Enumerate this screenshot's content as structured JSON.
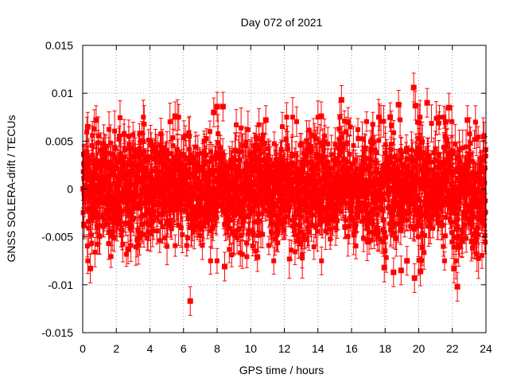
{
  "chart_data": {
    "type": "scatter",
    "title": "Day 072 of 2021",
    "xlabel": "GPS time / hours",
    "ylabel": "GNSS SOLERA-drift / TECUs",
    "xlim": [
      0,
      24
    ],
    "ylim": [
      -0.015,
      0.015
    ],
    "xticks": [
      0,
      2,
      4,
      6,
      8,
      10,
      12,
      14,
      16,
      18,
      20,
      22,
      24
    ],
    "xtick_labels": [
      "0",
      "2",
      "4",
      "6",
      "8",
      "10",
      "12",
      "14",
      "16",
      "18",
      "20",
      "22",
      "24"
    ],
    "yticks": [
      -0.015,
      -0.01,
      -0.005,
      0,
      0.005,
      0.01,
      0.015
    ],
    "ytick_labels": [
      "-0.015",
      "-0.01",
      "-0.005",
      "0",
      "0.005",
      "0.01",
      "0.015"
    ],
    "grid": true,
    "series_color": "#ff0000",
    "bulk_band": [
      -0.0045,
      0.0045
    ],
    "typical_error": 0.0015,
    "outliers": [
      {
        "x": 0.08,
        "y": -0.0037
      },
      {
        "x": 0.3,
        "y": 0.0065
      },
      {
        "x": 0.45,
        "y": -0.0083
      },
      {
        "x": 0.8,
        "y": 0.0072
      },
      {
        "x": 2.7,
        "y": -0.0063
      },
      {
        "x": 5.5,
        "y": 0.0076
      },
      {
        "x": 6.4,
        "y": -0.0117
      },
      {
        "x": 7.8,
        "y": 0.008
      },
      {
        "x": 8.0,
        "y": 0.0086
      },
      {
        "x": 8.35,
        "y": 0.0086
      },
      {
        "x": 8.45,
        "y": -0.0081
      },
      {
        "x": 10.4,
        "y": -0.0071
      },
      {
        "x": 10.9,
        "y": 0.0072
      },
      {
        "x": 14.2,
        "y": 0.0076
      },
      {
        "x": 15.4,
        "y": 0.0093
      },
      {
        "x": 15.8,
        "y": 0.007
      },
      {
        "x": 17.95,
        "y": -0.0082
      },
      {
        "x": 18.3,
        "y": 0.0075
      },
      {
        "x": 18.5,
        "y": -0.0087
      },
      {
        "x": 18.8,
        "y": 0.0088
      },
      {
        "x": 18.95,
        "y": -0.0085
      },
      {
        "x": 19.3,
        "y": -0.0075
      },
      {
        "x": 19.7,
        "y": 0.0106
      },
      {
        "x": 19.75,
        "y": -0.0093
      },
      {
        "x": 19.8,
        "y": 0.0087
      },
      {
        "x": 20.1,
        "y": -0.0086
      },
      {
        "x": 20.5,
        "y": 0.009
      },
      {
        "x": 21.6,
        "y": 0.007
      },
      {
        "x": 21.8,
        "y": 0.0085
      },
      {
        "x": 22.1,
        "y": -0.0083
      },
      {
        "x": 22.3,
        "y": -0.0102
      },
      {
        "x": 22.9,
        "y": 0.0072
      }
    ]
  }
}
